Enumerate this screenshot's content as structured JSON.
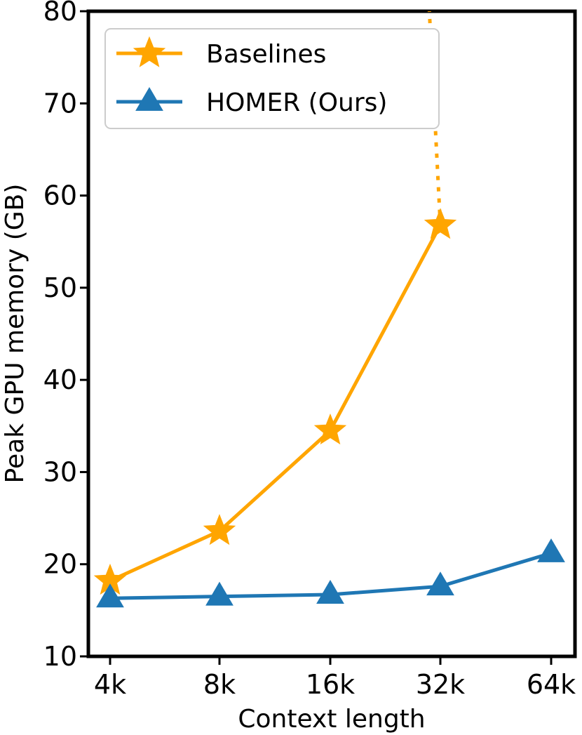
{
  "chart_data": {
    "type": "line",
    "xlabel": "Context length",
    "ylabel": "Peak GPU memory (GB)",
    "categories": [
      "4k",
      "8k",
      "16k",
      "32k",
      "64k"
    ],
    "y_ticks": [
      "10",
      "20",
      "30",
      "40",
      "50",
      "60",
      "70",
      "80"
    ],
    "ylim": [
      10,
      80
    ],
    "grid": false,
    "legend_position": "top-left",
    "series": [
      {
        "name": "Baselines",
        "color": "#FFA500",
        "marker": "star",
        "values": [
          18.2,
          23.6,
          34.5,
          56.8,
          null
        ],
        "extrapolation": {
          "style": "dotted",
          "from": "32k",
          "to_value": 80,
          "at_x_position": 2.9
        }
      },
      {
        "name": "HOMER (Ours)",
        "color": "#1F77B4",
        "marker": "triangle",
        "values": [
          16.3,
          16.5,
          16.7,
          17.6,
          21.2
        ]
      }
    ]
  }
}
